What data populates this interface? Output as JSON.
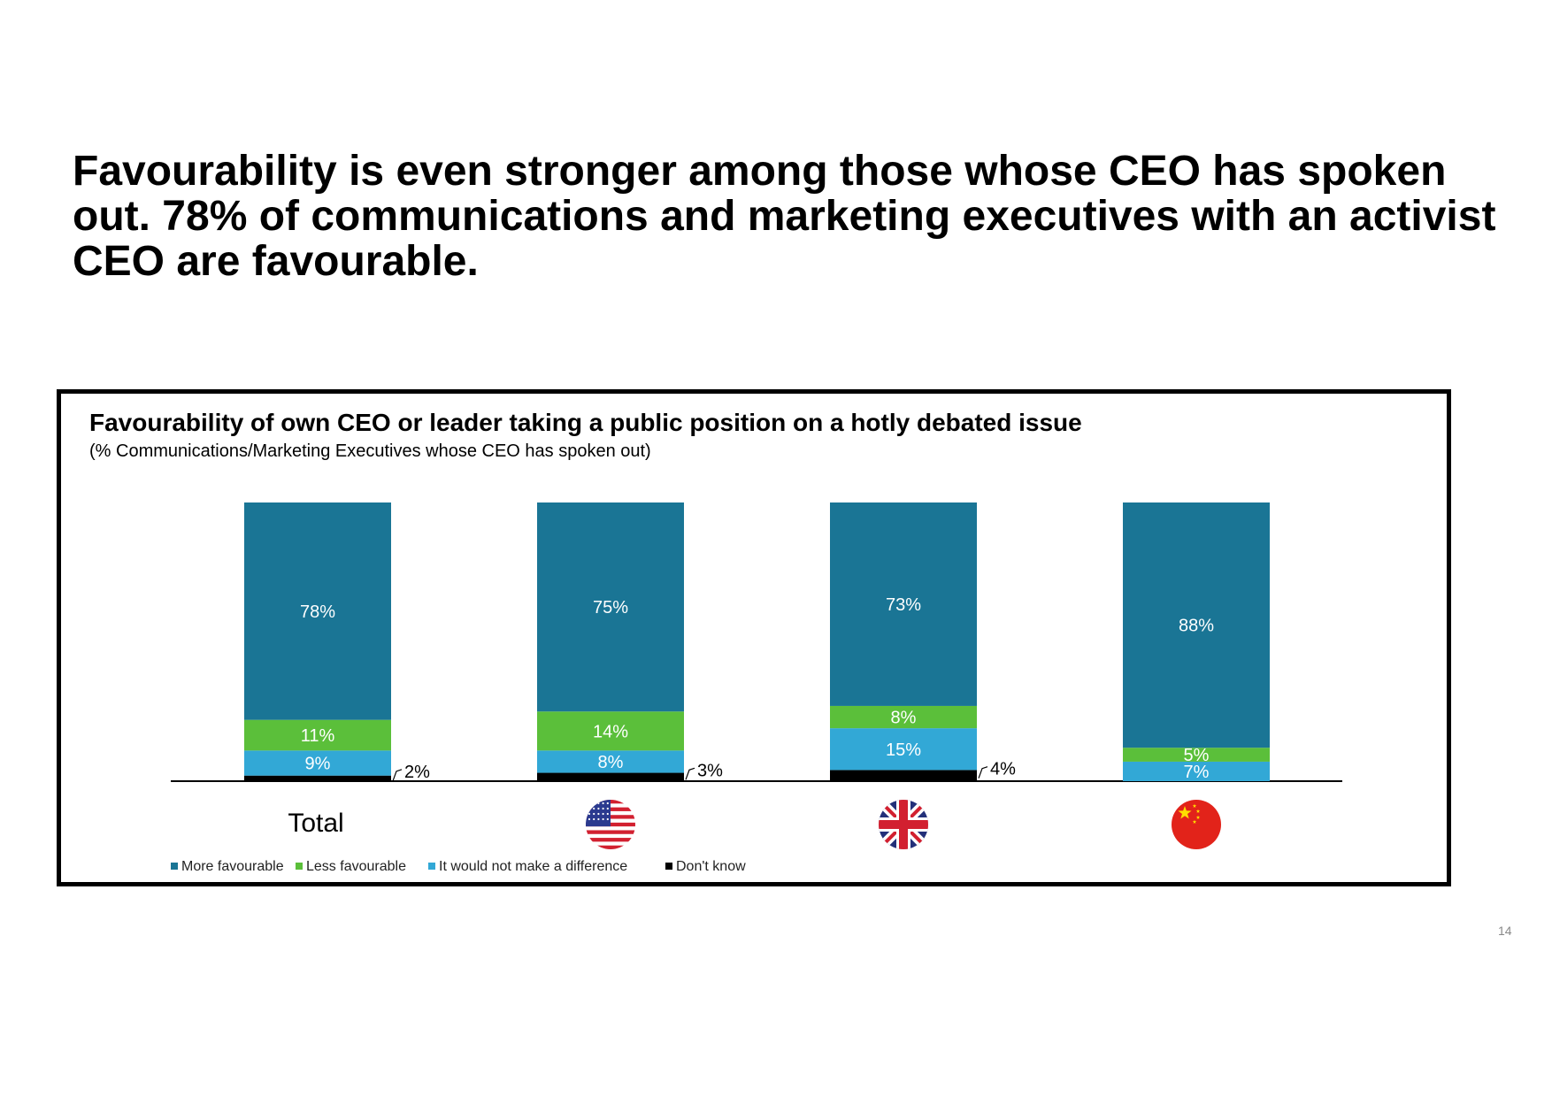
{
  "headline": "Favourability is even stronger among those whose CEO has spoken out. 78% of communications and marketing executives with an activist CEO are favourable.",
  "page_number": "14",
  "colors": {
    "more_favourable": "#1a7595",
    "less_favourable": "#5bbf3a",
    "no_difference": "#32a8d6",
    "dont_know": "#000000"
  },
  "chart_data": {
    "type": "bar",
    "stacked": true,
    "title": "Favourability of own CEO or leader taking a public position on a hotly debated issue",
    "subtitle": "(% Communications/Marketing Executives whose CEO has spoken out)",
    "categories": [
      "Total",
      "USA",
      "UK",
      "China"
    ],
    "category_labels": [
      {
        "kind": "text",
        "text": "Total"
      },
      {
        "kind": "flag",
        "flag": "us-flag-icon"
      },
      {
        "kind": "flag",
        "flag": "uk-flag-icon"
      },
      {
        "kind": "flag",
        "flag": "china-flag-icon"
      }
    ],
    "series": [
      {
        "name": "Don't know",
        "key": "dont_know",
        "values": [
          2,
          3,
          4,
          0
        ],
        "labels": [
          "2%",
          "3%",
          "4%",
          ""
        ],
        "label_style": "callout"
      },
      {
        "name": "It would not make a difference",
        "key": "no_difference",
        "values": [
          9,
          8,
          15,
          7
        ],
        "labels": [
          "9%",
          "8%",
          "15%",
          "7%"
        ],
        "label_style": "inside"
      },
      {
        "name": "Less favourable",
        "key": "less_favourable",
        "values": [
          11,
          14,
          8,
          5
        ],
        "labels": [
          "11%",
          "14%",
          "8%",
          "5%"
        ],
        "label_style": "inside"
      },
      {
        "name": "More favourable",
        "key": "more_favourable",
        "values": [
          78,
          75,
          73,
          88
        ],
        "labels": [
          "78%",
          "75%",
          "73%",
          "88%"
        ],
        "label_style": "inside"
      }
    ],
    "legend": [
      {
        "name": "More favourable",
        "key": "more_favourable"
      },
      {
        "name": "Less favourable",
        "key": "less_favourable"
      },
      {
        "name": "It would not make a difference",
        "key": "no_difference"
      },
      {
        "name": "Don't know",
        "key": "dont_know"
      }
    ],
    "ylim": [
      0,
      100
    ],
    "legend_position": "bottom-left"
  }
}
